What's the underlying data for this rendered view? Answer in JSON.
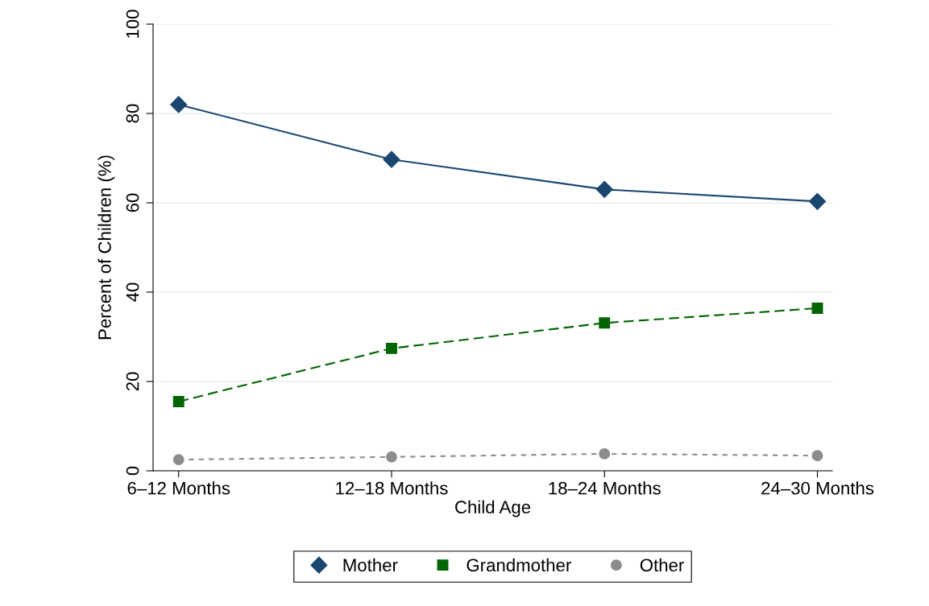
{
  "chart_data": {
    "type": "line",
    "xlabel": "Child Age",
    "ylabel": "Percent of Children (%)",
    "categories": [
      "6–12 Months",
      "12–18 Months",
      "18–24 Months",
      "24–30 Months"
    ],
    "series": [
      {
        "name": "Mother",
        "color": "#1a476f",
        "values": [
          82.0,
          69.7,
          63.0,
          60.3
        ],
        "marker": "diamond",
        "line_style": "solid"
      },
      {
        "name": "Grandmother",
        "color": "#006400",
        "values": [
          15.5,
          27.4,
          33.1,
          36.4
        ],
        "marker": "square",
        "line_style": "dashed"
      },
      {
        "name": "Other",
        "color": "#8c8c8c",
        "values": [
          2.5,
          3.1,
          3.8,
          3.4
        ],
        "marker": "circle",
        "line_style": "dotted"
      }
    ],
    "ylim": [
      0,
      100
    ],
    "yticks": [
      0,
      20,
      40,
      60,
      80,
      100
    ],
    "grid": "y",
    "legend": "bottom"
  }
}
